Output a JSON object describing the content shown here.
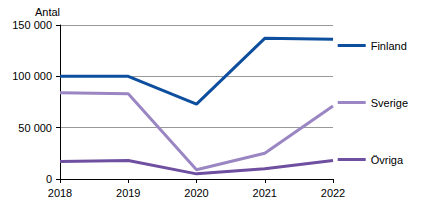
{
  "chart_data": {
    "type": "line",
    "y_label": "Antal",
    "categories": [
      "2018",
      "2019",
      "2020",
      "2021",
      "2022"
    ],
    "series": [
      {
        "name": "Finland",
        "color": "#0d4f9e",
        "values": [
          100000,
          100000,
          73000,
          137000,
          136000
        ]
      },
      {
        "name": "Sverige",
        "color": "#9a86c2",
        "values": [
          84000,
          83000,
          9000,
          25000,
          71000
        ]
      },
      {
        "name": "Övriga",
        "color": "#6e4fa0",
        "values": [
          17000,
          18000,
          5000,
          10000,
          18000
        ]
      }
    ],
    "ylim": [
      0,
      150000
    ],
    "yticks": [
      0,
      {
        "value": 50000,
        "label": "50 000"
      },
      {
        "value": 100000,
        "label": "100 000"
      },
      {
        "value": 150000,
        "label": "150 000"
      }
    ],
    "grid": true,
    "legend": "right"
  }
}
